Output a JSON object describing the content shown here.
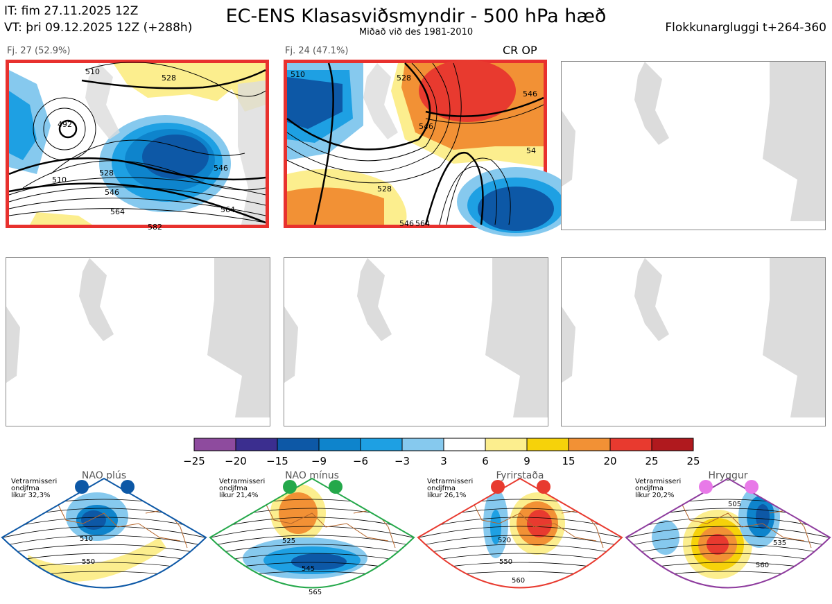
{
  "header": {
    "it": "IT: fim 27.11.2025 12Z",
    "vt": "VT: þri 09.12.2025 12Z  (+288h)",
    "title": "EC-ENS Klasasviðsmyndir - 500 hPa hæð",
    "subtitle": "Miðað við des 1981-2010",
    "window": "Flokkunargluggi t+264-360"
  },
  "panels": [
    {
      "label": "Fj. 27 (52.9%)",
      "selected": true,
      "tag": ""
    },
    {
      "label": "Fj. 24 (47.1%)",
      "selected": true,
      "tag": "CR OP"
    },
    {
      "label": "",
      "selected": false,
      "tag": ""
    },
    {
      "label": "",
      "selected": false,
      "tag": ""
    },
    {
      "label": "",
      "selected": false,
      "tag": ""
    },
    {
      "label": "",
      "selected": false,
      "tag": ""
    }
  ],
  "contour_labels": {
    "panel1": [
      "510",
      "528",
      "510",
      "492",
      "528",
      "546",
      "546",
      "564",
      "564",
      "582"
    ],
    "panel2": [
      "510",
      "528",
      "546",
      "546",
      "528",
      "54",
      "546",
      "564"
    ]
  },
  "chart_data": {
    "type": "heatmap",
    "title": "EC-ENS Klasasviðsmyndir - 500 hPa hæð",
    "colorbar": {
      "ticks": [
        "−25",
        "−20",
        "−15",
        "−9",
        "−6",
        "−3",
        "3",
        "6",
        "9",
        "15",
        "20",
        "25"
      ],
      "colors": [
        "#8e4b9e",
        "#3b2e8f",
        "#0d58a6",
        "#0e84cc",
        "#1ea0e3",
        "#86c9ee",
        "#ffffff",
        "#fcee8e",
        "#f6d20a",
        "#f29135",
        "#e83a2f",
        "#b0191e"
      ]
    },
    "regimes": [
      {
        "name": "NAO plús",
        "season": "Vetrarmisseri",
        "sub": "ondjfma",
        "prob": "líkur 32,3%",
        "border": "#0d58a6",
        "dot": "#0d58a6",
        "labels": [
          "510",
          "550"
        ]
      },
      {
        "name": "NAO mínus",
        "season": "Vetrarmisseri",
        "sub": "ondjfma",
        "prob": "líkur 21,4%",
        "border": "#24a84a",
        "dot": "#24a84a",
        "labels": [
          "525",
          "545",
          "565"
        ]
      },
      {
        "name": "Fyrirstaða",
        "season": "Vetrarmisseri",
        "sub": "ondjfma",
        "prob": "líkur 26,1%",
        "border": "#e83a2f",
        "dot": "#e83a2f",
        "labels": [
          "520",
          "550",
          "560"
        ]
      },
      {
        "name": "Hryggur",
        "season": "Vetrarmisseri",
        "sub": "ondjfma",
        "prob": "líkur 20,2%",
        "border": "#8e3c9e",
        "dot": "#e879e8",
        "labels": [
          "505",
          "535",
          "560"
        ]
      }
    ]
  }
}
